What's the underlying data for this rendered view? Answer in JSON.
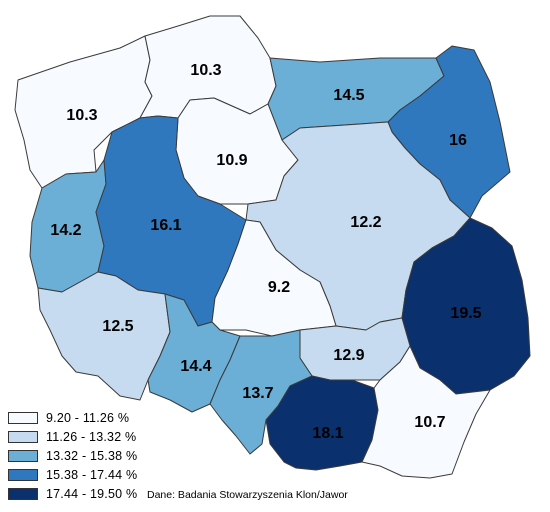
{
  "map": {
    "regions": [
      {
        "id": "zachodniopomorskie",
        "value": "10.3",
        "class": 0
      },
      {
        "id": "pomorskie",
        "value": "10.3",
        "class": 0
      },
      {
        "id": "warminsko-mazurskie",
        "value": "14.5",
        "class": 2
      },
      {
        "id": "podlaskie",
        "value": "16",
        "class": 3
      },
      {
        "id": "kujawsko-pomorskie",
        "value": "10.9",
        "class": 0
      },
      {
        "id": "lubuskie",
        "value": "14.2",
        "class": 2
      },
      {
        "id": "wielkopolskie",
        "value": "16.1",
        "class": 3
      },
      {
        "id": "mazowieckie",
        "value": "12.2",
        "class": 1
      },
      {
        "id": "lodzkie",
        "value": "9.2",
        "class": 0
      },
      {
        "id": "lubelskie",
        "value": "19.5",
        "class": 4
      },
      {
        "id": "dolnoslaskie",
        "value": "12.5",
        "class": 1
      },
      {
        "id": "swietokrzyskie",
        "value": "12.9",
        "class": 1
      },
      {
        "id": "opolskie",
        "value": "14.4",
        "class": 2
      },
      {
        "id": "slaskie",
        "value": "13.7",
        "class": 2
      },
      {
        "id": "malopolskie",
        "value": "18.1",
        "class": 4
      },
      {
        "id": "podkarpackie",
        "value": "10.7",
        "class": 0
      }
    ]
  },
  "legend": {
    "items": [
      {
        "label": "9.20 - 11.26 %",
        "color": "#f7fbff"
      },
      {
        "label": "11.26 - 13.32 %",
        "color": "#c6dbef"
      },
      {
        "label": "13.32 - 15.38 %",
        "color": "#6baed6"
      },
      {
        "label": "15.38 - 17.44 %",
        "color": "#2f78bd"
      },
      {
        "label": "17.44 - 19.50 %",
        "color": "#0b306e"
      }
    ]
  },
  "source": "Dane: Badania Stowarzyszenia Klon/Jawor"
}
